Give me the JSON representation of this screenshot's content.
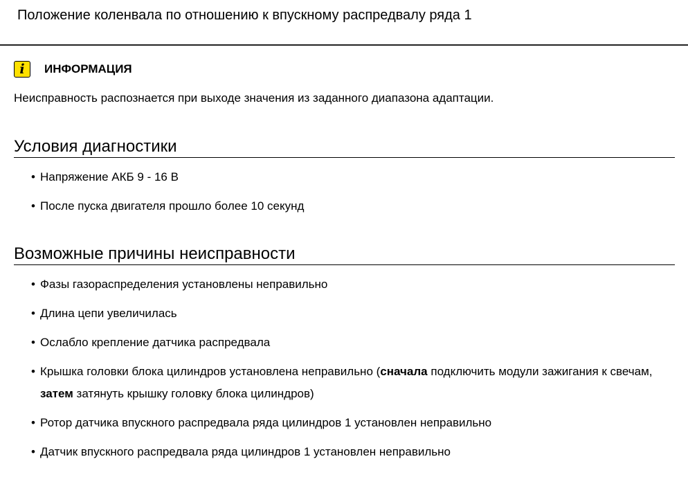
{
  "title": "Положение коленвала по отношению к впускному распредвалу ряда 1",
  "info": {
    "icon": "info-icon",
    "label": "ИНФОРМАЦИЯ",
    "color": "#ffe000",
    "text": "Неисправность распознается при выходе значения из заданного диапазона адаптации."
  },
  "conditions": {
    "heading": "Условия диагностики",
    "items": [
      "Напряжение АКБ 9 - 16 В",
      "После пуска двигателя прошло более 10 секунд"
    ]
  },
  "causes": {
    "heading": "Возможные причины неисправности",
    "items": [
      "Фазы газораспределения установлены неправильно",
      "Длина цепи увеличилась",
      "Ослабло крепление датчика распредвала",
      {
        "parts": [
          "Крышка головки блока цилиндров установлена неправильно (",
          "сначала",
          " подключить модули зажигания к свечам, ",
          "затем",
          " затянуть крышку головку блока цилиндров)"
        ]
      },
      "Ротор датчика впускного распредвала ряда цилиндров 1 установлен неправильно",
      "Датчик впускного распредвала ряда цилиндров 1 установлен неправильно"
    ]
  }
}
